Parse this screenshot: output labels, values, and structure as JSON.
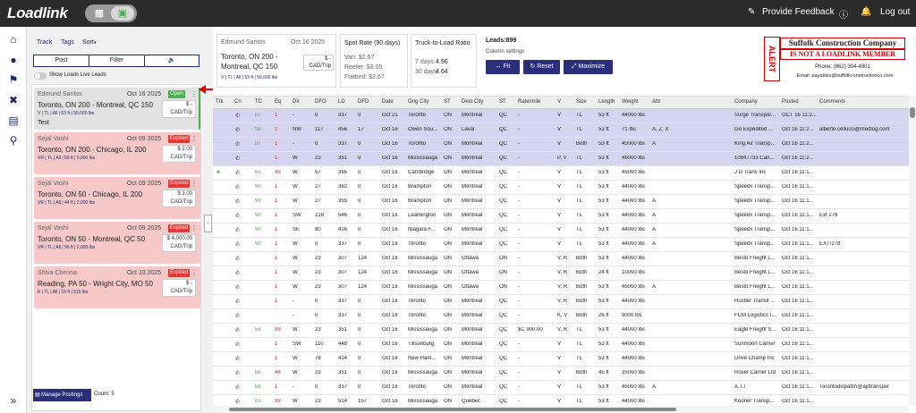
{
  "brand": "Loadlink",
  "topbar": {
    "provide_feedback": "Provide Feedback",
    "logout": "Log out"
  },
  "left": {
    "tabs": {
      "track": "Track",
      "tags": "Tags",
      "sort": "Sort"
    },
    "post": "Post",
    "filter": "Filter",
    "show_live": "Show Loads Live Leads",
    "manage": "Manage Postings",
    "count": "Count: 5",
    "cards": [
      {
        "name": "Edmund Santos",
        "date": "Oct 16 2025",
        "badge": "Open",
        "route": "Toronto, ON 200  -  Montreal, QC 150",
        "specs": "V | TL | All | 53 ft | 50,000 lbs",
        "price1": "$ -",
        "price2": "CAD/Trip",
        "extra": "Test"
      },
      {
        "name": "Sejal Vashi",
        "date": "Oct 09 2025",
        "badge": "Expired",
        "route": "Toronto, ON 200  -  Chicago, IL 200",
        "specs": "VR | TL | All | 50 ft | 5,000 lbs",
        "price1": "$ 2.00",
        "price2": "CAD/Trip"
      },
      {
        "name": "Sejal Vashi",
        "date": "Oct 09 2025",
        "badge": "Expired",
        "route": "Toronto, ON 50  -  Chicago, IL 200",
        "specs": "VR | TL | All | 44 ft | 2,000 lbs",
        "price1": "$ 3.00",
        "price2": "CAD/Trip"
      },
      {
        "name": "Sejal Vashi",
        "date": "Oct 09 2025",
        "badge": "Expired",
        "route": "Toronto, ON 50  -  Montreal, QC 50",
        "specs": "VR | TL | All | 99 ft | 2,000 lbs",
        "price1": "$ 4,000.00",
        "price2": "CAD/Trip"
      },
      {
        "name": "Shiva Chenna",
        "date": "Oct 10 2025",
        "badge": "Expired",
        "route": "Reading, PA 50  -  Wright City, MO 50",
        "specs": "K | TL | All | 15 ft | 515 lbs",
        "price1": "$ -",
        "price2": "CAD/Trip"
      }
    ]
  },
  "summary": {
    "name": "Edmund Santos",
    "date": "Oct 16 2025",
    "route1": "Toronto, ON 200 -",
    "route2": "Montreal, QC 150",
    "specs": "V | TL | All | 53 ft | 50,000 lbs",
    "price1": "$ -",
    "price2": "CAD/Trip"
  },
  "spot": {
    "title": "Spot Rate (90 days)",
    "van": "Van: $2.67",
    "reefer": "Reefer: $3.05",
    "flatbed": "Flatbed: $2.67"
  },
  "ratio": {
    "title": "Truck-to-Load Ratio",
    "d7": "7 days:",
    "d7v": "4.96",
    "d30": "30 days:",
    "d30v": "4.64"
  },
  "leads": {
    "title": "Leads:899",
    "col_settings": "Column settings",
    "fit": "Fit",
    "reset": "Reset",
    "maximize": "Maximize"
  },
  "ad": {
    "alert": "ALERT",
    "company": "Suffolk Construction Company",
    "not_member": "IS NOT A LOADLINK MEMBER",
    "phone": "Phone: (862) 304-4901",
    "email": "Email: payables@suffolkconstructionco.com"
  },
  "columns": [
    "Trk",
    "Cn",
    "TC",
    "Eq",
    "Dir",
    "DFO",
    "LD",
    "DFD",
    "Date",
    "Orig City",
    "ST",
    "Dest City",
    "ST",
    "Rate/mile",
    "V",
    "Size",
    "Length",
    "Weight",
    "Attr",
    "Company",
    "Posted",
    "Comments"
  ],
  "rows": [
    [
      "",
      "",
      "87",
      "1",
      "-",
      "0",
      "337",
      "0",
      "Oct 21",
      "Toronto",
      "ON",
      "Montreal",
      "QC",
      "-",
      "V",
      "TL",
      "53 ft",
      "44000 lbs",
      "",
      "Surge Transpor...",
      "OCT 16 11:2...",
      ""
    ],
    [
      "",
      "",
      "98",
      "1",
      "NW",
      "117",
      "456",
      "17",
      "Oct 16",
      "Owen Sou...",
      "ON",
      "Laval",
      "QC",
      "-",
      "V",
      "TL",
      "53 ft",
      "71 lbs",
      "A, Z, X",
      "Go Expedited ...",
      "Oct 16 11:2...",
      "alberto.cellucci@medlog.com"
    ],
    [
      "",
      "",
      "87",
      "1",
      "-",
      "0",
      "337",
      "0",
      "Oct 16",
      "Toronto",
      "ON",
      "Montreal",
      "QC",
      "-",
      "V",
      "Both",
      "53 ft",
      "45000 lbs",
      "A",
      "King Air Transp...",
      "Oct 16 11:2...",
      ""
    ],
    [
      "",
      "",
      "",
      "1",
      "W",
      "23",
      "351",
      "0",
      "Oct 16",
      "Mississauga",
      "ON",
      "Montreal",
      "QC",
      "-",
      "P, V",
      "TL",
      "53 ft",
      "46000 lbs",
      "",
      "10947733 Can...",
      "Oct 16 11:2...",
      ""
    ],
    [
      "",
      "",
      "65",
      "99",
      "W",
      "57",
      "395",
      "0",
      "Oct 16",
      "Cambridge",
      "ON",
      "Montreal",
      "QC",
      "-",
      "V",
      "TL",
      "53 ft",
      "45000 lbs",
      "",
      "J D Trans Inc",
      "Oct 16 11:1...",
      ""
    ],
    [
      "",
      "",
      "99",
      "1",
      "W",
      "27",
      "362",
      "0",
      "Oct 16",
      "Brampton",
      "ON",
      "Montreal",
      "QC",
      "-",
      "V",
      "TL",
      "53 ft",
      "44000 lbs",
      "",
      "Speedx Transp...",
      "Oct 16 11:1...",
      ""
    ],
    [
      "",
      "",
      "99",
      "1",
      "W",
      "27",
      "355",
      "0",
      "Oct 16",
      "Brampton",
      "ON",
      "Montreal",
      "QC",
      "-",
      "V",
      "TL",
      "53 ft",
      "44000 lbs",
      "A",
      "Speedx Transp...",
      "Oct 16 11:1...",
      ""
    ],
    [
      "",
      "",
      "99",
      "1",
      "SW",
      "218",
      "546",
      "0",
      "Oct 16",
      "Leamington",
      "ON",
      "Montreal",
      "QC",
      "-",
      "V",
      "TL",
      "53 ft",
      "44000 lbs",
      "A",
      "Speedx Transp...",
      "Oct 16 11:1...",
      "Ext 278"
    ],
    [
      "",
      "",
      "99",
      "1",
      "SE",
      "80",
      "416",
      "0",
      "Oct 16",
      "Niagara F...",
      "ON",
      "Montreal",
      "QC",
      "-",
      "V",
      "TL",
      "53 ft",
      "44000 lbs",
      "A",
      "Speedx Transp...",
      "Oct 16 11:1...",
      ""
    ],
    [
      "",
      "",
      "99",
      "1",
      "W",
      "0",
      "337",
      "0",
      "Oct 16",
      "Toronto",
      "ON",
      "Montreal",
      "QC",
      "-",
      "V",
      "TL",
      "53 ft",
      "44000 lbs",
      "A",
      "Speedx Transp...",
      "Oct 16 11:1...",
      "EXT/278"
    ],
    [
      "",
      "",
      "",
      "1",
      "W",
      "23",
      "307",
      "124",
      "Oct 16",
      "Mississauga",
      "ON",
      "Ottawa",
      "ON",
      "-",
      "V, R",
      "Both",
      "53 ft",
      "44000 lbs",
      "",
      "Besto Freight L...",
      "Oct 16 11:1...",
      ""
    ],
    [
      "",
      "",
      "",
      "1",
      "W",
      "23",
      "307",
      "124",
      "Oct 16",
      "Mississauga",
      "ON",
      "Ottawa",
      "ON",
      "-",
      "V, R",
      "Both",
      "24 ft",
      "10000 lbs",
      "",
      "Besto Freight L...",
      "Oct 16 11:1...",
      ""
    ],
    [
      "",
      "",
      "",
      "1",
      "W",
      "23",
      "307",
      "124",
      "Oct 16",
      "Mississauga",
      "ON",
      "Ottawa",
      "ON",
      "-",
      "V, R",
      "Both",
      "53 ft",
      "45000 lbs",
      "A",
      "Besto Freight L...",
      "Oct 16 11:1...",
      ""
    ],
    [
      "",
      "",
      "",
      "1",
      "-",
      "0",
      "337",
      "0",
      "Oct 16",
      "Toronto",
      "ON",
      "Montreal",
      "QC",
      "-",
      "V, R",
      "Both",
      "53 ft",
      "44000 lbs",
      "",
      "Hustler Transit ...",
      "Oct 16 11:1...",
      ""
    ],
    [
      "",
      "",
      "",
      "",
      "-",
      "0",
      "337",
      "0",
      "Oct 16",
      "Toronto",
      "ON",
      "Montreal",
      "QC",
      "-",
      "K, V",
      "Both",
      "26 ft",
      "9000 lbs",
      "",
      "FCM Logistics I...",
      "Oct 16 11:1...",
      ""
    ],
    [
      "",
      "",
      "58",
      "89",
      "W",
      "23",
      "351",
      "0",
      "Oct 16",
      "Mississauga",
      "ON",
      "Montreal",
      "QC",
      "$C      900.00",
      "V, R",
      "TL",
      "53 ft",
      "44000 lbs",
      "",
      "Eagle Freight S...",
      "Oct 16 11:1...",
      ""
    ],
    [
      "",
      "",
      "",
      "1",
      "SW",
      "110",
      "448",
      "0",
      "Oct 16",
      "Tillsonburg",
      "ON",
      "Montreal",
      "QC",
      "-",
      "V",
      "TL",
      "53 ft",
      "44000 lbs",
      "",
      "Sunmoon Carrier",
      "Oct 16 11:1...",
      ""
    ],
    [
      "",
      "",
      "",
      "1",
      "W",
      "78",
      "414",
      "0",
      "Oct 16",
      "New Ham...",
      "ON",
      "Montreal",
      "QC",
      "-",
      "V",
      "TL",
      "53 ft",
      "44000 lbs",
      "",
      "Drive Champ Inc",
      "Oct 16 11:1...",
      ""
    ],
    [
      "",
      "",
      "68",
      "48",
      "W",
      "23",
      "351",
      "0",
      "Oct 16",
      "Mississauga",
      "ON",
      "Montreal",
      "QC",
      "-",
      "V",
      "Both",
      "45 ft",
      "35000 lbs",
      "",
      "Rover Carrier Ltd",
      "Oct 16 11:1...",
      ""
    ],
    [
      "",
      "",
      "68",
      "1",
      "-",
      "0",
      "337",
      "0",
      "Oct 16",
      "Toronto",
      "ON",
      "Montreal",
      "QC",
      "-",
      "V",
      "TL",
      "53 ft",
      "45000 lbs",
      "A",
      "A.T.I",
      "Oct 16 11:1...",
      "Torontodispatch@ajittranspor"
    ],
    [
      "",
      "",
      "83",
      "99",
      "W",
      "23",
      "514",
      "157",
      "Oct 16",
      "Mississauga",
      "ON",
      "Quebec",
      "QC",
      "-",
      "V",
      "TL",
      "53 ft",
      "44000 lbs",
      "",
      "Kooner Transp...",
      "Oct 16 11:1...",
      ""
    ],
    [
      "",
      "",
      "",
      "33",
      "W",
      "27",
      "305",
      "124",
      "Oct 16",
      "Brampton",
      "ON",
      "Ottawa",
      "ON",
      "-",
      "V",
      "TL",
      "53 ft",
      "1 lbs",
      "A, Z, V, X, M, H, E, N",
      "Wolf Pack Logi...",
      "Oct 16 11:1...",
      ""
    ]
  ]
}
